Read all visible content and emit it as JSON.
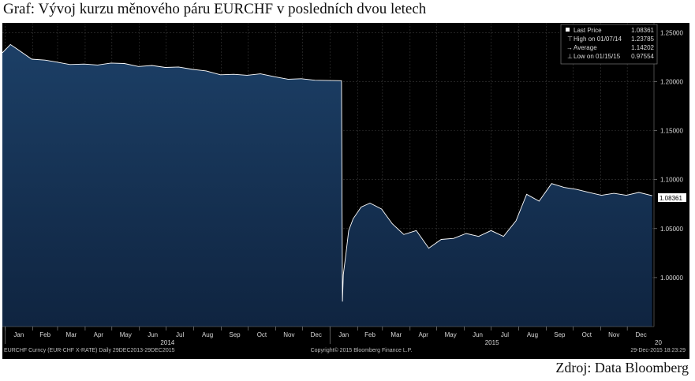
{
  "caption": "Graf: Vývoj kurzu měnového páru EURCHF v posledních dvou letech",
  "source": "Zdroj: Data Bloomberg",
  "colors": {
    "background": "#000000",
    "area_top": "#1c3f66",
    "area_bottom": "#0f2440",
    "line": "#ffffff",
    "text": "#d8d8d8"
  },
  "chart_data": {
    "type": "area",
    "title": "",
    "xlabel": "",
    "ylabel": "",
    "ylim": [
      0.95,
      1.26
    ],
    "yticks": [
      "1.25000",
      "1.20000",
      "1.15000",
      "1.10000",
      "1.05000",
      "1.00000"
    ],
    "ytick_values": [
      1.25,
      1.2,
      1.15,
      1.1,
      1.05,
      1.0
    ],
    "x_months": [
      "Jan",
      "Feb",
      "Mar",
      "Apr",
      "May",
      "Jun",
      "Jul",
      "Aug",
      "Sep",
      "Oct",
      "Nov",
      "Dec",
      "Jan",
      "Feb",
      "Mar",
      "Apr",
      "May",
      "Jun",
      "Jul",
      "Aug",
      "Sep",
      "Oct",
      "Nov",
      "Dec"
    ],
    "x_years": [
      "2014",
      "2015"
    ],
    "x_edge_label": "20",
    "grid": true,
    "legend_position": "top-right",
    "legend": [
      {
        "label": "Last Price",
        "value": "1.08361"
      },
      {
        "label": "High on 01/07/14",
        "value": "1.23785"
      },
      {
        "label": "Average",
        "value": "1.14202"
      },
      {
        "label": "Low on 01/15/15",
        "value": "0.97554"
      }
    ],
    "last_price_tag": "1.08361",
    "series": [
      {
        "name": "EURCHF Curncy",
        "x": [
          "2013-12-29",
          "2014-01-07",
          "2014-01-15",
          "2014-01-31",
          "2014-02-15",
          "2014-02-28",
          "2014-03-15",
          "2014-03-31",
          "2014-04-15",
          "2014-04-30",
          "2014-05-15",
          "2014-05-31",
          "2014-06-15",
          "2014-06-30",
          "2014-07-15",
          "2014-07-31",
          "2014-08-15",
          "2014-08-31",
          "2014-09-15",
          "2014-09-30",
          "2014-10-15",
          "2014-10-31",
          "2014-11-15",
          "2014-11-30",
          "2014-12-15",
          "2015-01-14",
          "2015-01-15",
          "2015-01-16",
          "2015-01-19",
          "2015-01-22",
          "2015-01-27",
          "2015-02-05",
          "2015-02-15",
          "2015-02-28",
          "2015-03-12",
          "2015-03-25",
          "2015-04-08",
          "2015-04-22",
          "2015-05-06",
          "2015-05-20",
          "2015-06-03",
          "2015-06-17",
          "2015-07-01",
          "2015-07-15",
          "2015-07-29",
          "2015-08-10",
          "2015-08-24",
          "2015-09-07",
          "2015-09-21",
          "2015-10-05",
          "2015-10-19",
          "2015-11-02",
          "2015-11-16",
          "2015-11-30",
          "2015-12-14",
          "2015-12-29"
        ],
        "values": [
          1.2295,
          1.2379,
          1.233,
          1.223,
          1.222,
          1.22,
          1.2175,
          1.218,
          1.217,
          1.219,
          1.2185,
          1.2155,
          1.2165,
          1.2145,
          1.215,
          1.2125,
          1.211,
          1.207,
          1.2075,
          1.2065,
          1.208,
          1.205,
          1.2025,
          1.203,
          1.2015,
          1.201,
          0.9755,
          1.003,
          1.025,
          1.048,
          1.06,
          1.072,
          1.076,
          1.07,
          1.055,
          1.044,
          1.048,
          1.03,
          1.039,
          1.04,
          1.045,
          1.042,
          1.048,
          1.042,
          1.058,
          1.085,
          1.078,
          1.096,
          1.092,
          1.09,
          1.087,
          1.084,
          1.086,
          1.084,
          1.087,
          1.0836
        ]
      }
    ]
  },
  "footer": {
    "left": "EURCHF Curncy (EUR-CHF X-RATE)  Daily 29DEC2013-29DEC2015",
    "center": "Copyright© 2015 Bloomberg Finance L.P.",
    "right": "29-Dec-2015 18:23:29"
  }
}
